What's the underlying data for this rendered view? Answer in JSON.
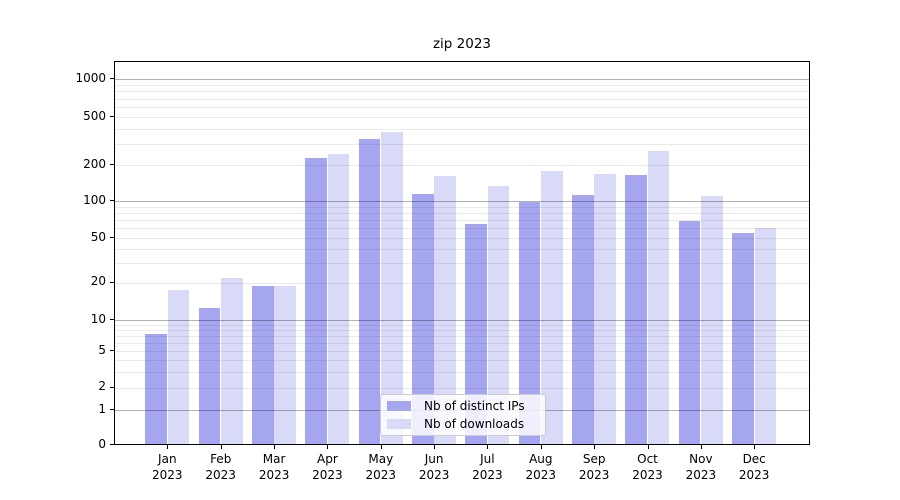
{
  "chart_data": {
    "type": "bar",
    "title": "zip 2023",
    "categories": [
      {
        "label": "Jan",
        "sub": "2023"
      },
      {
        "label": "Feb",
        "sub": "2023"
      },
      {
        "label": "Mar",
        "sub": "2023"
      },
      {
        "label": "Apr",
        "sub": "2023"
      },
      {
        "label": "May",
        "sub": "2023"
      },
      {
        "label": "Jun",
        "sub": "2023"
      },
      {
        "label": "Jul",
        "sub": "2023"
      },
      {
        "label": "Aug",
        "sub": "2023"
      },
      {
        "label": "Sep",
        "sub": "2023"
      },
      {
        "label": "Oct",
        "sub": "2023"
      },
      {
        "label": "Nov",
        "sub": "2023"
      },
      {
        "label": "Dec",
        "sub": "2023"
      }
    ],
    "series": [
      {
        "name": "Nb of distinct IPs",
        "color": "#a5a5f0",
        "values": [
          7,
          12,
          18,
          220,
          315,
          111,
          63,
          95,
          109,
          160,
          67,
          53
        ]
      },
      {
        "name": "Nb of downloads",
        "color": "#d9d9f8",
        "values": [
          17,
          21,
          18,
          240,
          365,
          157,
          130,
          173,
          162,
          255,
          106,
          58
        ]
      }
    ],
    "y_ticks": [
      0,
      1,
      2,
      5,
      10,
      20,
      50,
      100,
      200,
      500,
      1000
    ],
    "y_minor_gridlines": [
      2,
      3,
      4,
      5,
      6,
      7,
      8,
      9,
      20,
      30,
      40,
      50,
      60,
      70,
      80,
      90,
      200,
      300,
      400,
      500,
      600,
      700,
      800,
      900
    ],
    "yscale": "symlog",
    "ylim": [
      0,
      1400
    ],
    "grid": true,
    "grid_above_bars": true,
    "legend_position": "lower center",
    "colors": {
      "grid_major": "rgba(0,0,0,0.30)",
      "grid_minor": "rgba(0,0,0,0.08)",
      "legend_border": "#cccccc",
      "axis": "#000000"
    }
  }
}
